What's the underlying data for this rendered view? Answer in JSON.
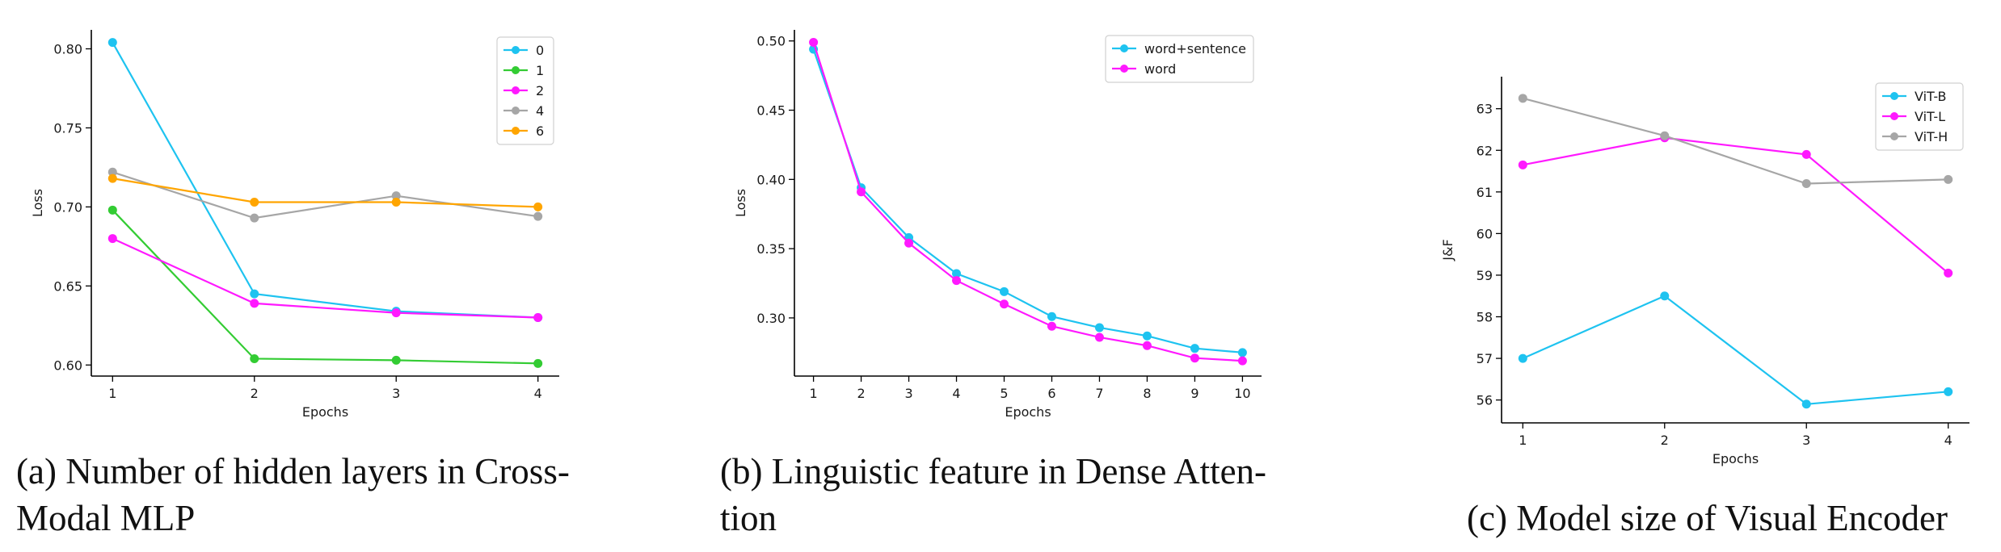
{
  "chart_data": [
    {
      "type": "line",
      "xlabel": "Epochs",
      "ylabel": "Loss",
      "xticks": [
        1,
        2,
        3,
        4
      ],
      "yticks": [
        0.6,
        0.65,
        0.7,
        0.75,
        0.8
      ],
      "ytick_labels": [
        "0.60",
        "0.65",
        "0.70",
        "0.75",
        "0.80"
      ],
      "xlim": [
        0.85,
        4.15
      ],
      "ylim": [
        0.593,
        0.812
      ],
      "legend_position": "top-right",
      "x": [
        1,
        2,
        3,
        4
      ],
      "series": [
        {
          "name": "0",
          "color": "#1ec3f0",
          "values": [
            0.804,
            0.645,
            0.634,
            0.63
          ]
        },
        {
          "name": "1",
          "color": "#33cc33",
          "values": [
            0.698,
            0.604,
            0.603,
            0.601
          ]
        },
        {
          "name": "2",
          "color": "#ff19ff",
          "values": [
            0.68,
            0.639,
            0.633,
            0.63
          ]
        },
        {
          "name": "4",
          "color": "#a6a6a6",
          "values": [
            0.722,
            0.693,
            0.707,
            0.694
          ]
        },
        {
          "name": "6",
          "color": "#ffa500",
          "values": [
            0.718,
            0.703,
            0.703,
            0.7
          ]
        }
      ],
      "caption": "(a) Number of hidden layers in Cross-Modal MLP",
      "caption_lines": [
        "(a) Number of hidden layers in Cross-",
        "Modal MLP"
      ]
    },
    {
      "type": "line",
      "xlabel": "Epochs",
      "ylabel": "Loss",
      "xticks": [
        1,
        2,
        3,
        4,
        5,
        6,
        7,
        8,
        9,
        10
      ],
      "yticks": [
        0.3,
        0.35,
        0.4,
        0.45,
        0.5
      ],
      "ytick_labels": [
        "0.30",
        "0.35",
        "0.40",
        "0.45",
        "0.50"
      ],
      "xlim": [
        0.6,
        10.4
      ],
      "ylim": [
        0.258,
        0.508
      ],
      "legend_position": "top-right",
      "x": [
        1,
        2,
        3,
        4,
        5,
        6,
        7,
        8,
        9,
        10
      ],
      "series": [
        {
          "name": "word+sentence",
          "color": "#1ec3f0",
          "values": [
            0.494,
            0.394,
            0.358,
            0.332,
            0.319,
            0.301,
            0.293,
            0.287,
            0.278,
            0.275
          ]
        },
        {
          "name": "word",
          "color": "#ff19ff",
          "values": [
            0.499,
            0.391,
            0.354,
            0.327,
            0.31,
            0.294,
            0.286,
            0.28,
            0.271,
            0.269
          ]
        }
      ],
      "caption": "(b) Linguistic feature in Dense Attention",
      "caption_lines": [
        "(b) Linguistic feature in Dense Atten-",
        "tion"
      ]
    },
    {
      "type": "line",
      "xlabel": "Epochs",
      "ylabel": "J&F",
      "xticks": [
        1,
        2,
        3,
        4
      ],
      "yticks": [
        56,
        57,
        58,
        59,
        60,
        61,
        62,
        63
      ],
      "ytick_labels": [
        "56",
        "57",
        "58",
        "59",
        "60",
        "61",
        "62",
        "63"
      ],
      "xlim": [
        0.85,
        4.15
      ],
      "ylim": [
        55.45,
        63.77
      ],
      "legend_position": "top-right",
      "x": [
        1,
        2,
        3,
        4
      ],
      "series": [
        {
          "name": "ViT-B",
          "color": "#1ec3f0",
          "values": [
            57.0,
            58.5,
            55.9,
            56.2
          ]
        },
        {
          "name": "ViT-L",
          "color": "#ff19ff",
          "values": [
            61.65,
            62.3,
            61.9,
            59.05
          ]
        },
        {
          "name": "ViT-H",
          "color": "#a6a6a6",
          "values": [
            63.25,
            62.35,
            61.2,
            61.3
          ]
        }
      ],
      "caption": "(c) Model size of Visual Encoder",
      "caption_lines": [
        "(c) Model size of Visual Encoder"
      ]
    }
  ]
}
